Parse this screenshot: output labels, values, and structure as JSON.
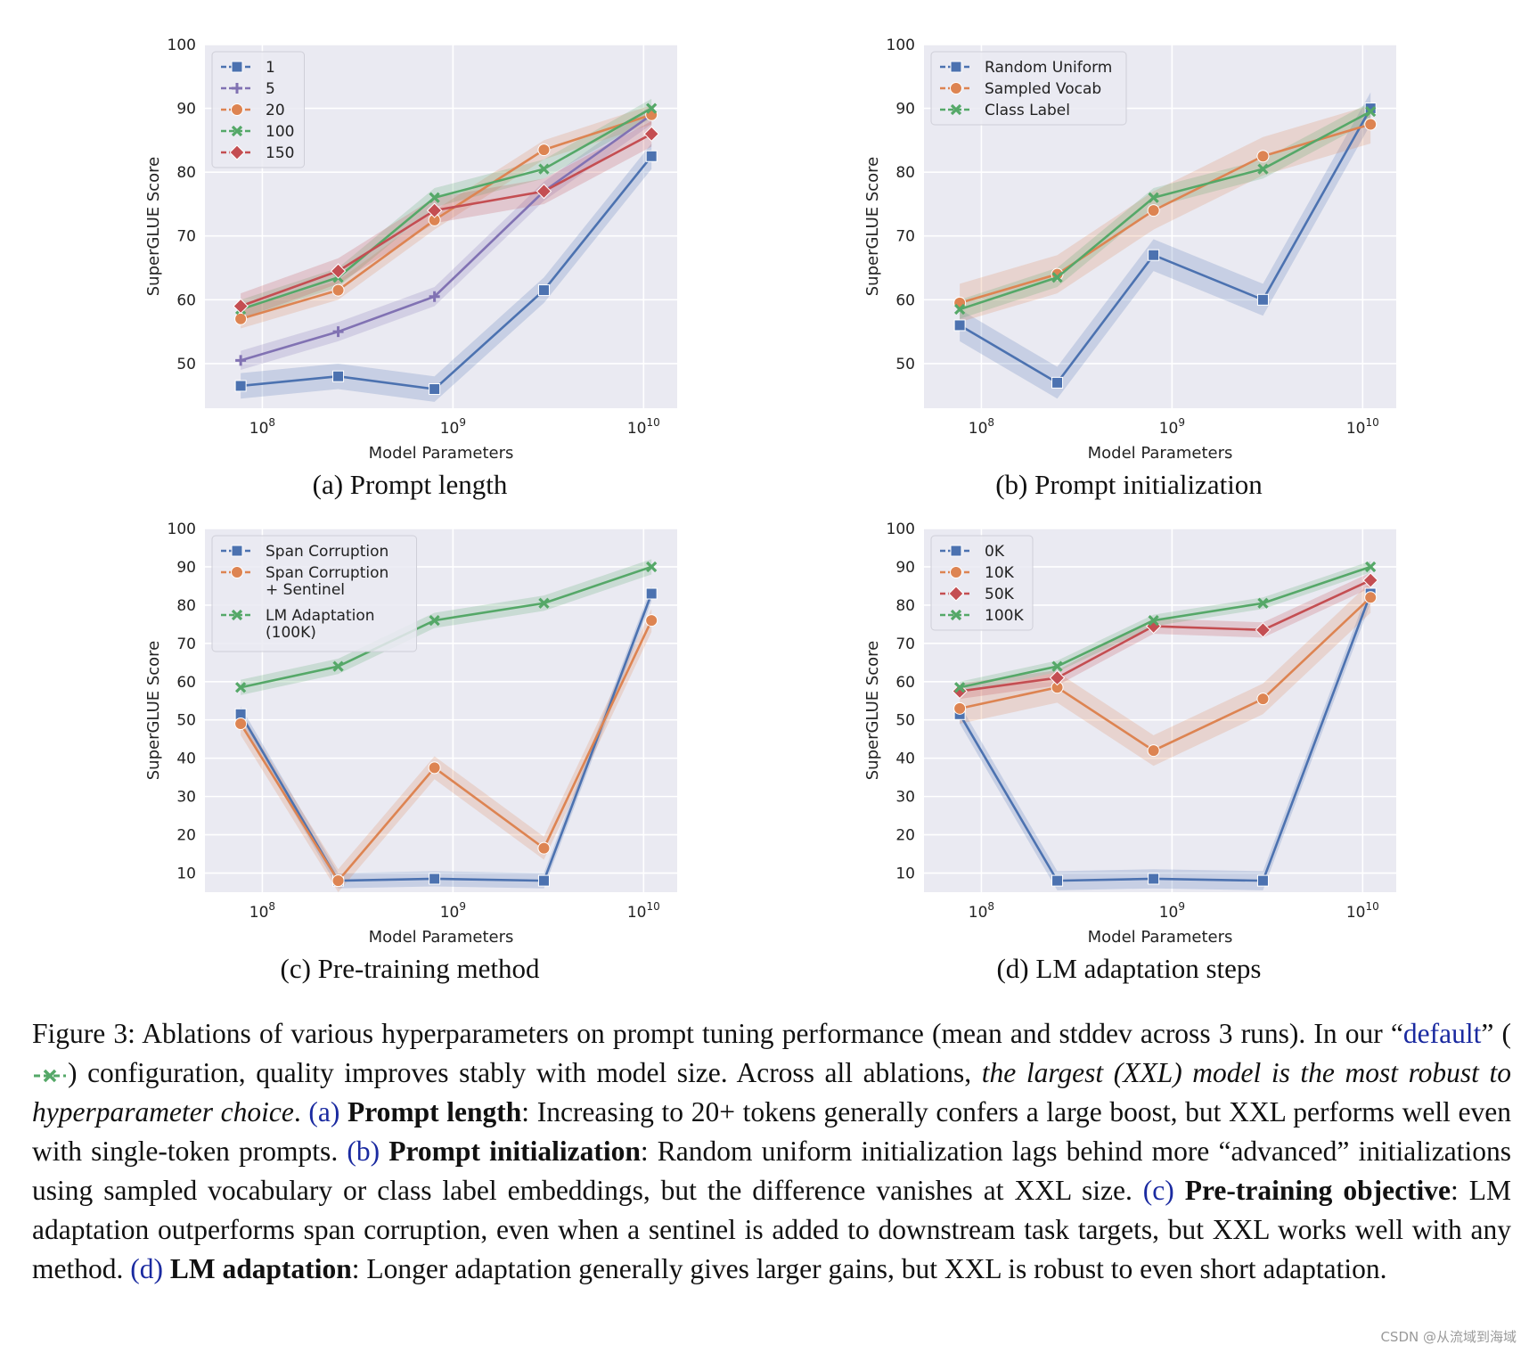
{
  "chart_data": [
    {
      "type": "line",
      "panel_caption": "(a) Prompt length",
      "xlabel": "Model Parameters",
      "ylabel": "SuperGLUE Score",
      "xscale": "log",
      "xlim": [
        50000000,
        15000000000
      ],
      "ylim": [
        43,
        100
      ],
      "x": [
        77000000,
        250000000,
        800000000,
        3000000000,
        11000000000
      ],
      "x_ticks": [
        {
          "value": 100000000,
          "base": "10",
          "exp": "8"
        },
        {
          "value": 1000000000,
          "base": "10",
          "exp": "9"
        },
        {
          "value": 10000000000,
          "base": "10",
          "exp": "10"
        }
      ],
      "y_ticks": [
        50,
        60,
        70,
        80,
        90,
        100
      ],
      "grid": true,
      "legend_position": "top-left",
      "series": [
        {
          "name": "1",
          "color": "#4c72b0",
          "marker": "square",
          "values": [
            46.5,
            48,
            46,
            61.5,
            82.5
          ],
          "band": 2
        },
        {
          "name": "5",
          "color": "#8172b3",
          "marker": "plus",
          "values": [
            50.5,
            55,
            60.5,
            77,
            89
          ],
          "band": 1.5
        },
        {
          "name": "20",
          "color": "#dd8452",
          "marker": "circle",
          "values": [
            57,
            61.5,
            72.5,
            83.5,
            89
          ],
          "band": 1.5
        },
        {
          "name": "100",
          "color": "#55a868",
          "marker": "x",
          "values": [
            58.5,
            63.5,
            76,
            80.5,
            90
          ],
          "band": 1.5
        },
        {
          "name": "150",
          "color": "#c44e52",
          "marker": "diamond",
          "values": [
            59,
            64.5,
            74,
            77,
            86
          ],
          "band": 2
        }
      ]
    },
    {
      "type": "line",
      "panel_caption": "(b) Prompt initialization",
      "xlabel": "Model Parameters",
      "ylabel": "SuperGLUE Score",
      "xscale": "log",
      "xlim": [
        50000000,
        15000000000
      ],
      "ylim": [
        43,
        100
      ],
      "x": [
        77000000,
        250000000,
        800000000,
        3000000000,
        11000000000
      ],
      "x_ticks": [
        {
          "value": 100000000,
          "base": "10",
          "exp": "8"
        },
        {
          "value": 1000000000,
          "base": "10",
          "exp": "9"
        },
        {
          "value": 10000000000,
          "base": "10",
          "exp": "10"
        }
      ],
      "y_ticks": [
        50,
        60,
        70,
        80,
        90,
        100
      ],
      "grid": true,
      "legend_position": "top-left",
      "series": [
        {
          "name": "Random Uniform",
          "color": "#4c72b0",
          "marker": "square",
          "values": [
            56,
            47,
            67,
            60,
            90
          ],
          "band": 2.5
        },
        {
          "name": "Sampled Vocab",
          "color": "#dd8452",
          "marker": "circle",
          "values": [
            59.5,
            64,
            74,
            82.5,
            87.5
          ],
          "band": 3
        },
        {
          "name": "Class Label",
          "color": "#55a868",
          "marker": "x",
          "values": [
            58.5,
            63.5,
            76,
            80.5,
            89.5
          ],
          "band": 1.5
        }
      ]
    },
    {
      "type": "line",
      "panel_caption": "(c) Pre-training method",
      "xlabel": "Model Parameters",
      "ylabel": "SuperGLUE Score",
      "xscale": "log",
      "xlim": [
        50000000,
        15000000000
      ],
      "ylim": [
        5,
        100
      ],
      "x": [
        77000000,
        250000000,
        800000000,
        3000000000,
        11000000000
      ],
      "x_ticks": [
        {
          "value": 100000000,
          "base": "10",
          "exp": "8"
        },
        {
          "value": 1000000000,
          "base": "10",
          "exp": "9"
        },
        {
          "value": 10000000000,
          "base": "10",
          "exp": "10"
        }
      ],
      "y_ticks": [
        10,
        20,
        30,
        40,
        50,
        60,
        70,
        80,
        90,
        100
      ],
      "grid": true,
      "legend_position": "top-left",
      "series": [
        {
          "name": "Span Corruption",
          "color": "#4c72b0",
          "marker": "square",
          "values": [
            51.5,
            8,
            8.5,
            8,
            83
          ],
          "band": 2
        },
        {
          "name": "Span Corruption\n+ Sentinel",
          "color": "#dd8452",
          "marker": "circle",
          "values": [
            49,
            8,
            37.5,
            16.5,
            76
          ],
          "band": 3
        },
        {
          "name": "LM Adaptation\n(100K)",
          "color": "#55a868",
          "marker": "x",
          "values": [
            58.5,
            64,
            76,
            80.5,
            90
          ],
          "band": 2
        }
      ]
    },
    {
      "type": "line",
      "panel_caption": "(d) LM adaptation steps",
      "xlabel": "Model Parameters",
      "ylabel": "SuperGLUE Score",
      "xscale": "log",
      "xlim": [
        50000000,
        15000000000
      ],
      "ylim": [
        5,
        100
      ],
      "x": [
        77000000,
        250000000,
        800000000,
        3000000000,
        11000000000
      ],
      "x_ticks": [
        {
          "value": 100000000,
          "base": "10",
          "exp": "8"
        },
        {
          "value": 1000000000,
          "base": "10",
          "exp": "9"
        },
        {
          "value": 10000000000,
          "base": "10",
          "exp": "10"
        }
      ],
      "y_ticks": [
        10,
        20,
        30,
        40,
        50,
        60,
        70,
        80,
        90,
        100
      ],
      "grid": true,
      "legend_position": "top-left",
      "series": [
        {
          "name": "0K",
          "color": "#4c72b0",
          "marker": "square",
          "values": [
            51.5,
            8,
            8.5,
            8,
            83
          ],
          "band": 2.5
        },
        {
          "name": "10K",
          "color": "#dd8452",
          "marker": "circle",
          "values": [
            53,
            58.5,
            42,
            55.5,
            82
          ],
          "band": 4
        },
        {
          "name": "50K",
          "color": "#c44e52",
          "marker": "diamond",
          "values": [
            57.5,
            61,
            74.5,
            73.5,
            86.5
          ],
          "band": 2
        },
        {
          "name": "100K",
          "color": "#55a868",
          "marker": "x",
          "values": [
            58.5,
            64,
            76,
            80.5,
            90
          ],
          "band": 1.5
        }
      ]
    }
  ],
  "caption": {
    "lead": "Figure 3: Ablations of various hyperparameters on prompt tuning performance (mean and stddev across 3 runs). In our “",
    "default_word": "default",
    "after_default": "” (",
    "after_marker": ") configuration, quality improves stably with model size. Across all ablations, ",
    "robust_italic": "the largest (XXL) model is the most robust to hyperparameter choice",
    "after_italic": ". ",
    "a_ref": "(a)",
    "a_bold": "Prompt length",
    "a_text": ": Increasing to 20+ tokens generally confers a large boost, but XXL performs well even with single-token prompts. ",
    "b_ref": "(b)",
    "b_bold": "Prompt initialization",
    "b_text": ": Random uniform initialization lags behind more “advanced” initializations using sampled vocabulary or class label embeddings, but the difference vanishes at XXL size. ",
    "c_ref": "(c)",
    "c_bold": "Pre-training objective",
    "c_text": ": LM adaptation outperforms span corruption, even when a sentinel is added to downstream task targets, but XXL works well with any method. ",
    "d_ref": "(d)",
    "d_bold": "LM adaptation",
    "d_text": ": Longer adaptation generally gives larger gains, but XXL is robust to even short adaptation."
  },
  "watermark": "CSDN @从流域到海域",
  "colors": {
    "default_marker": "#55a868",
    "ref_blue": "#1a2aa0"
  }
}
